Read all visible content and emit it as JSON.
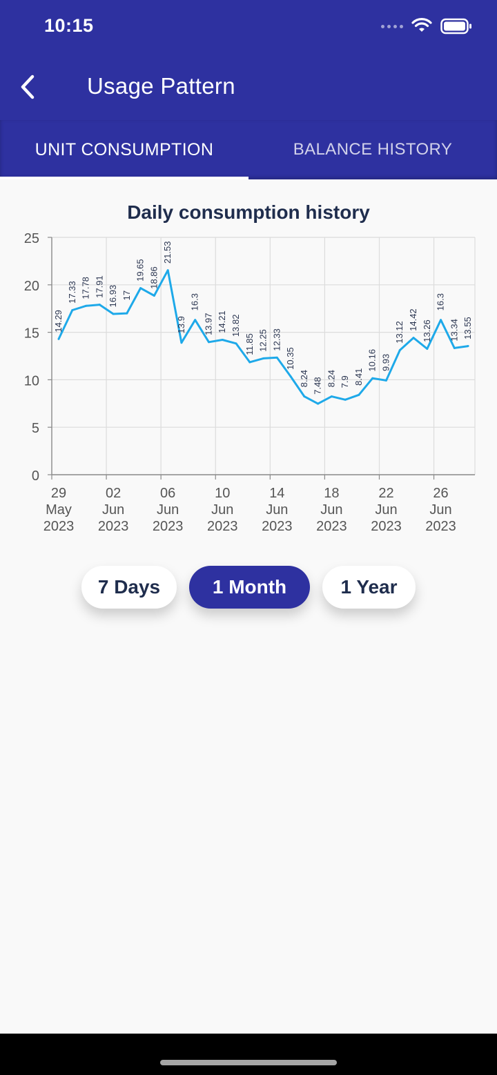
{
  "status": {
    "time": "10:15"
  },
  "appbar": {
    "title": "Usage Pattern"
  },
  "tabs": [
    {
      "label": "UNIT CONSUMPTION",
      "active": true
    },
    {
      "label": "BALANCE HISTORY",
      "active": false
    }
  ],
  "range_buttons": [
    {
      "label": "7 Days",
      "active": false
    },
    {
      "label": "1 Month",
      "active": true
    },
    {
      "label": "1 Year",
      "active": false
    }
  ],
  "colors": {
    "primary": "#2e31a0",
    "line": "#1ea9e9",
    "text": "#1f2d4d"
  },
  "chart_data": {
    "type": "line",
    "title": "Daily consumption history",
    "ylim": [
      0,
      25
    ],
    "yticks": [
      "0",
      "5",
      "10",
      "15",
      "20",
      "25"
    ],
    "grid": true,
    "x_ticks": [
      {
        "day": "29",
        "month": "May",
        "year": "2023",
        "index": 0
      },
      {
        "day": "02",
        "month": "Jun",
        "year": "2023",
        "index": 4
      },
      {
        "day": "06",
        "month": "Jun",
        "year": "2023",
        "index": 8
      },
      {
        "day": "10",
        "month": "Jun",
        "year": "2023",
        "index": 12
      },
      {
        "day": "14",
        "month": "Jun",
        "year": "2023",
        "index": 16
      },
      {
        "day": "18",
        "month": "Jun",
        "year": "2023",
        "index": 20
      },
      {
        "day": "22",
        "month": "Jun",
        "year": "2023",
        "index": 24
      },
      {
        "day": "26",
        "month": "Jun",
        "year": "2023",
        "index": 28
      }
    ],
    "values": [
      14.29,
      17.33,
      17.78,
      17.91,
      16.93,
      17,
      19.65,
      18.86,
      21.53,
      13.9,
      16.3,
      13.97,
      14.21,
      13.82,
      11.85,
      12.25,
      12.33,
      10.35,
      8.24,
      7.48,
      8.24,
      7.9,
      8.41,
      10.16,
      9.93,
      13.12,
      14.42,
      13.26,
      16.3,
      13.34,
      13.55
    ],
    "labels": [
      "14.29",
      "17.33",
      "17.78",
      "17.91",
      "16.93",
      "17",
      "19.65",
      "18.86",
      "21.53",
      "13.9",
      "16.3",
      "13.97",
      "14.21",
      "13.82",
      "11.85",
      "12.25",
      "12.33",
      "10.35",
      "8.24",
      "7.48",
      "8.24",
      "7.9",
      "8.41",
      "10.16",
      "9.93",
      "13.12",
      "14.42",
      "13.26",
      "16.3",
      "13.34",
      "13.55"
    ]
  }
}
